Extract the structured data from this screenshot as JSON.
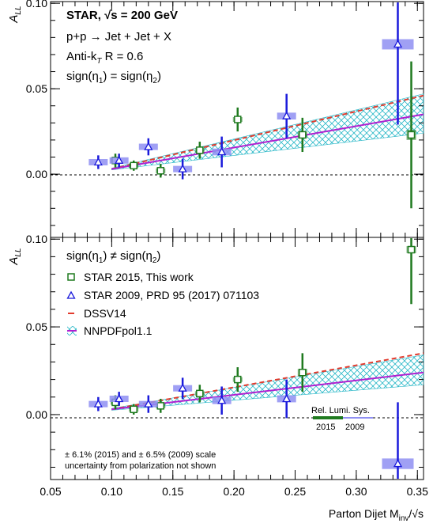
{
  "chart_data": [
    {
      "type": "scatter",
      "panel": "top",
      "ylabel": "A_LL",
      "annotations": {
        "line1_prefix": "STAR, ",
        "line1_sqrt": "√s",
        "line1_suffix": " = 200 GeV",
        "line2": "p+p → Jet + Jet + X",
        "line3_prefix": "Anti-k",
        "line3_sub": "T",
        "line3_suffix": "  R = 0.6",
        "topology_a": "sign(η",
        "topology_sub1": "1",
        "topology_b": ") = sign(η",
        "topology_sub2": "2",
        "topology_c": ")"
      },
      "xlim": [
        0.05,
        0.355
      ],
      "ylim": [
        -0.037,
        0.101
      ],
      "yticks": [
        0.0,
        0.05,
        0.1
      ],
      "ytick_labels": [
        "0.00",
        "0.05",
        "0.10"
      ],
      "series": [
        {
          "name": "STAR 2015, This work",
          "color": "#1f7a1f",
          "x": [
            0.103,
            0.118,
            0.14,
            0.172,
            0.203,
            0.256,
            0.345
          ],
          "y": [
            0.008,
            0.005,
            0.002,
            0.014,
            0.032,
            0.023,
            0.023
          ],
          "err": [
            0.004,
            0.003,
            0.004,
            0.005,
            0.007,
            0.01,
            0.043
          ],
          "sys": [
            0.001,
            0.001,
            0.001,
            0.001,
            0.001,
            0.002,
            0.003
          ]
        },
        {
          "name": "STAR 2009, PRD 95 (2017) 071103",
          "color": "#1a1adb",
          "x": [
            0.089,
            0.106,
            0.13,
            0.158,
            0.19,
            0.243,
            0.334
          ],
          "y": [
            0.007,
            0.008,
            0.016,
            0.003,
            0.013,
            0.034,
            0.076
          ],
          "err": [
            0.004,
            0.004,
            0.005,
            0.006,
            0.009,
            0.013,
            0.047
          ],
          "sys": [
            0.001,
            0.001,
            0.001,
            0.001,
            0.002,
            0.002,
            0.003
          ]
        }
      ],
      "theory": [
        {
          "name": "DSSV14",
          "x": [
            0.1,
            0.355
          ],
          "y": [
            0.003,
            0.046
          ]
        },
        {
          "name": "NNPDFpol1.1",
          "x": [
            0.1,
            0.355
          ],
          "y": [
            0.003,
            0.035
          ],
          "band_low": [
            0.0025,
            0.024
          ],
          "band_high": [
            0.0035,
            0.047
          ]
        }
      ]
    },
    {
      "type": "scatter",
      "panel": "bottom",
      "ylabel": "A_LL",
      "xlabel_prefix": "Parton Dijet  M",
      "xlabel_sub": "inv",
      "xlabel_suffix": "/√s",
      "annotations": {
        "topology_a": "sign(η",
        "topology_sub1": "1",
        "topology_b": ") ≠ sign(η",
        "topology_sub2": "2",
        "topology_c": ")",
        "lumi_title": "Rel. Lumi. Sys.",
        "lumi_2015": "2015",
        "lumi_2009": "2009",
        "scale_note_1": "± 6.1% (2015) and ± 6.5% (2009) scale",
        "scale_note_2": "uncertainty from polarization not shown"
      },
      "xlim": [
        0.05,
        0.355
      ],
      "ylim": [
        -0.037,
        0.101
      ],
      "xticks": [
        0.05,
        0.1,
        0.15,
        0.2,
        0.25,
        0.3,
        0.35
      ],
      "xtick_labels": [
        "0.05",
        "0.10",
        "0.15",
        "0.20",
        "0.25",
        "0.30",
        "0.35"
      ],
      "yticks": [
        0.0,
        0.05,
        0.1
      ],
      "ytick_labels": [
        "0.00",
        "0.05",
        "0.10"
      ],
      "series": [
        {
          "name": "STAR 2015, This work",
          "color": "#1f7a1f",
          "x": [
            0.103,
            0.118,
            0.14,
            0.172,
            0.203,
            0.256,
            0.345
          ],
          "y": [
            0.007,
            0.003,
            0.005,
            0.012,
            0.02,
            0.024,
            0.094
          ],
          "err": [
            0.004,
            0.003,
            0.004,
            0.005,
            0.007,
            0.011,
            0.031
          ],
          "sys": [
            0.001,
            0.001,
            0.001,
            0.001,
            0.001,
            0.002,
            0.002
          ]
        },
        {
          "name": "STAR 2009, PRD 95 (2017) 071103",
          "color": "#1a1adb",
          "x": [
            0.089,
            0.106,
            0.13,
            0.158,
            0.19,
            0.243,
            0.334
          ],
          "y": [
            0.006,
            0.009,
            0.006,
            0.015,
            0.008,
            0.009,
            -0.028
          ],
          "err": [
            0.004,
            0.004,
            0.005,
            0.006,
            0.008,
            0.011,
            0.035
          ],
          "sys": [
            0.001,
            0.001,
            0.001,
            0.001,
            0.002,
            0.002,
            0.003
          ]
        }
      ],
      "theory": [
        {
          "name": "DSSV14",
          "x": [
            0.1,
            0.355
          ],
          "y": [
            0.003,
            0.035
          ]
        },
        {
          "name": "NNPDFpol1.1",
          "x": [
            0.1,
            0.355
          ],
          "y": [
            0.003,
            0.024
          ],
          "band_low": [
            0.0025,
            0.017
          ],
          "band_high": [
            0.0035,
            0.034
          ]
        }
      ]
    }
  ],
  "legend": [
    {
      "name": "STAR 2015, This work",
      "marker": "open-square",
      "color": "#1f7a1f"
    },
    {
      "name": "STAR 2009, PRD 95 (2017) 071103",
      "marker": "open-triangle",
      "color": "#1a1adb"
    },
    {
      "name": "DSSV14",
      "marker": "dashed-line",
      "color": "#e23b2e"
    },
    {
      "name": "NNPDFpol1.1",
      "marker": "line-band",
      "color": "#b020d0"
    }
  ],
  "colors": {
    "star2015": "#1f7a1f",
    "star2009": "#1a1adb",
    "syserr": "#8f8ff2",
    "dssv": "#e23b2e",
    "nnpdf": "#b020d0",
    "band": "#2bb8c8"
  }
}
